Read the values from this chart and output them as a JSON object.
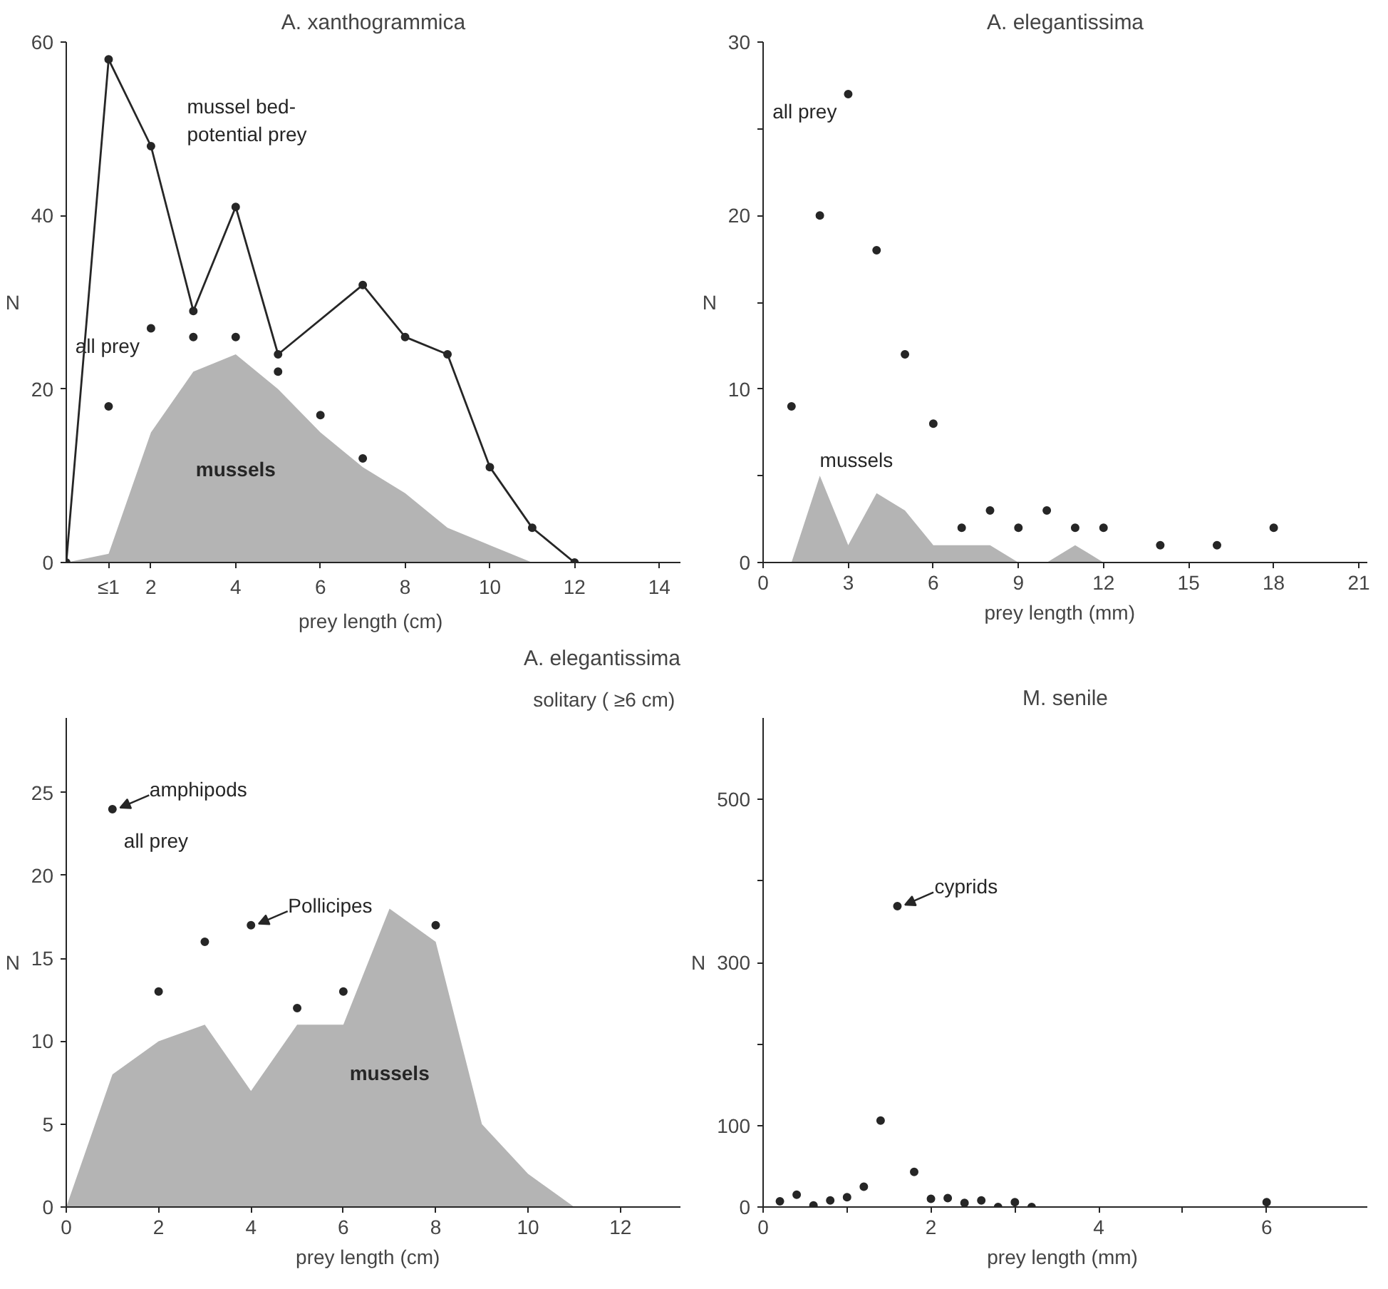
{
  "chart_data": [
    {
      "type": "line",
      "title": "A. xanthogrammica",
      "xlabel": "prey length  (cm)",
      "ylabel": "N",
      "xlim": [
        0,
        14.5
      ],
      "ylim": [
        0,
        60
      ],
      "xticks": [
        {
          "value": 1,
          "label": "≤1"
        },
        2,
        4,
        6,
        8,
        10,
        12,
        14
      ],
      "yticks": [
        0,
        20,
        40,
        60
      ],
      "series": [
        {
          "type": "area",
          "name": "mussels",
          "color": "#b4b4b4",
          "x": [
            0,
            1,
            2,
            3,
            4,
            5,
            6,
            7,
            8,
            9,
            10,
            11
          ],
          "values": [
            0,
            1,
            15,
            22,
            24,
            20,
            15,
            11,
            8,
            4,
            2,
            0
          ]
        },
        {
          "name": "mussel bed-\npotential prey",
          "marker": "circle",
          "color": "#262626",
          "x": [
            0,
            1,
            2,
            3,
            4,
            5,
            7,
            8,
            9,
            10,
            11,
            12
          ],
          "values": [
            0,
            58,
            48,
            29,
            41,
            24,
            32,
            26,
            24,
            11,
            4,
            0
          ]
        },
        {
          "type": "scatter",
          "name": "all prey",
          "marker": "circle",
          "color": "#262626",
          "x": [
            1,
            2,
            3,
            4,
            5,
            6,
            7
          ],
          "values": [
            18,
            27,
            26,
            26,
            22,
            17,
            12
          ]
        }
      ]
    },
    {
      "type": "area",
      "title": "A. elegantissima",
      "xlabel": "prey length   (mm)",
      "ylabel": "N",
      "xlim": [
        0,
        21.3
      ],
      "ylim": [
        0,
        30
      ],
      "xticks": [
        0,
        3,
        6,
        9,
        12,
        15,
        18,
        21
      ],
      "yticks": [
        0,
        {
          "value": 5,
          "label": null
        },
        10,
        {
          "value": 15,
          "label": null
        },
        20,
        {
          "value": 25,
          "label": null
        },
        30
      ],
      "series": [
        {
          "name": "mussels",
          "color": "#b4b4b4",
          "x": [
            1,
            2,
            3,
            4,
            5,
            6,
            7,
            8,
            9,
            10,
            11,
            12
          ],
          "values": [
            0,
            5,
            1,
            4,
            3,
            1,
            1,
            1,
            0,
            0,
            1,
            0
          ]
        },
        {
          "type": "scatter",
          "name": "all prey",
          "marker": "circle",
          "color": "#262626",
          "x": [
            1,
            2,
            3,
            4,
            5,
            6,
            7,
            8,
            9,
            10,
            11,
            12,
            14,
            16,
            18
          ],
          "values": [
            9,
            20,
            27,
            18,
            12,
            8,
            2,
            3,
            2,
            3,
            2,
            2,
            1,
            1,
            2
          ]
        }
      ]
    },
    {
      "type": "area",
      "title": "A. elegantissima",
      "subtitle": "solitary  ( ≥6 cm)",
      "xlabel": "prey length   (cm)",
      "ylabel": "N",
      "xlim": [
        0,
        13.3
      ],
      "ylim": [
        0,
        29.5
      ],
      "xticks": [
        0,
        2,
        4,
        6,
        8,
        10,
        12
      ],
      "yticks": [
        0,
        5,
        10,
        15,
        20,
        25
      ],
      "series": [
        {
          "name": "mussels",
          "color": "#b4b4b4",
          "x": [
            0,
            1,
            2,
            3,
            4,
            5,
            6,
            7,
            8,
            9,
            10,
            11
          ],
          "values": [
            0,
            8,
            10,
            11,
            7,
            11,
            11,
            18,
            16,
            5,
            2,
            0
          ]
        },
        {
          "type": "scatter",
          "name": "all prey",
          "marker": "circle",
          "color": "#262626",
          "x": [
            1,
            2,
            3,
            4,
            5,
            6,
            8
          ],
          "values": [
            24,
            13,
            16,
            17,
            12,
            13,
            17
          ]
        }
      ],
      "annotations": [
        {
          "text": "amphipods",
          "x": 1,
          "y": 24
        },
        {
          "text": "Pollicipes",
          "x": 4,
          "y": 17
        }
      ]
    },
    {
      "type": "scatter",
      "title": "M. senile",
      "xlabel": "prey length  (mm)",
      "ylabel": "N",
      "xlim": [
        0,
        7.2
      ],
      "ylim": [
        0,
        600
      ],
      "xticks": [
        0,
        {
          "value": 1,
          "label": null
        },
        2,
        {
          "value": 3,
          "label": null
        },
        4,
        {
          "value": 5,
          "label": null
        },
        6
      ],
      "yticks": [
        0,
        100,
        {
          "value": 200,
          "label": null
        },
        300,
        {
          "value": 400,
          "label": null
        },
        500
      ],
      "series": [
        {
          "marker": "circle",
          "color": "#262626",
          "x": [
            0.2,
            0.4,
            0.6,
            0.8,
            1.0,
            1.2,
            1.4,
            1.6,
            1.8,
            2.0,
            2.2,
            2.4,
            2.6,
            2.8,
            3.0,
            3.2,
            6.0
          ],
          "values": [
            7,
            15,
            2,
            8,
            12,
            25,
            106,
            369,
            43,
            10,
            11,
            5,
            8,
            0,
            6,
            0,
            6
          ]
        }
      ],
      "annotations": [
        {
          "text": "cyprids",
          "x": 1.6,
          "y": 369
        }
      ]
    }
  ]
}
